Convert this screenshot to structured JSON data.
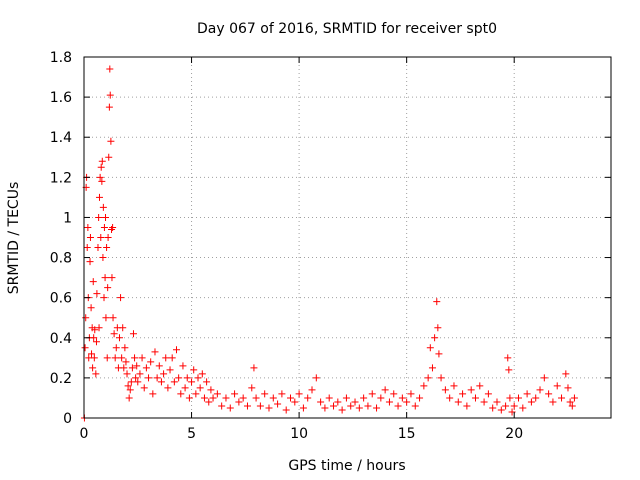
{
  "chart_data": {
    "type": "scatter",
    "title": "Day 067 of 2016, SRMTID for receiver spt0",
    "xlabel": "GPS time / hours",
    "ylabel": "SRMTID / TECUs",
    "xlim": [
      0,
      24.5
    ],
    "ylim": [
      0,
      1.8
    ],
    "x_ticks": [
      0,
      5,
      10,
      15,
      20
    ],
    "x_tick_labels": [
      "0",
      "5",
      "10",
      "15",
      "20"
    ],
    "y_ticks": [
      0,
      0.2,
      0.4,
      0.6,
      0.8,
      1.0,
      1.2,
      1.4,
      1.6,
      1.8
    ],
    "y_tick_labels": [
      "0",
      "0.2",
      "0.4",
      "0.6",
      "0.8",
      "1",
      "1.2",
      "1.4",
      "1.6",
      "1.8"
    ],
    "grid": true,
    "marker": "plus",
    "series": [
      {
        "name": "SRMTID",
        "color": "#ff0000",
        "points": [
          [
            0.02,
            0.0
          ],
          [
            0.05,
            0.35
          ],
          [
            0.08,
            0.5
          ],
          [
            0.1,
            1.15
          ],
          [
            0.12,
            1.2
          ],
          [
            0.15,
            0.85
          ],
          [
            0.18,
            0.95
          ],
          [
            0.2,
            0.6
          ],
          [
            0.22,
            0.3
          ],
          [
            0.25,
            0.4
          ],
          [
            0.28,
            0.78
          ],
          [
            0.3,
            0.9
          ],
          [
            0.33,
            0.55
          ],
          [
            0.35,
            0.32
          ],
          [
            0.38,
            0.45
          ],
          [
            0.4,
            0.25
          ],
          [
            0.43,
            0.68
          ],
          [
            0.45,
            0.4
          ],
          [
            0.48,
            0.3
          ],
          [
            0.5,
            0.44
          ],
          [
            0.55,
            0.22
          ],
          [
            0.58,
            0.38
          ],
          [
            0.6,
            0.62
          ],
          [
            0.65,
            0.85
          ],
          [
            0.68,
            1.0
          ],
          [
            0.7,
            0.45
          ],
          [
            0.72,
            1.1
          ],
          [
            0.75,
            1.2
          ],
          [
            0.78,
            0.9
          ],
          [
            0.8,
            1.25
          ],
          [
            0.83,
            1.18
          ],
          [
            0.85,
            1.28
          ],
          [
            0.88,
            0.8
          ],
          [
            0.9,
            1.05
          ],
          [
            0.93,
            0.6
          ],
          [
            0.95,
            0.95
          ],
          [
            0.98,
            0.7
          ],
          [
            1.0,
            1.0
          ],
          [
            1.02,
            0.5
          ],
          [
            1.05,
            0.85
          ],
          [
            1.08,
            0.3
          ],
          [
            1.1,
            0.65
          ],
          [
            1.12,
            0.9
          ],
          [
            1.15,
            1.3
          ],
          [
            1.18,
            1.55
          ],
          [
            1.2,
            1.74
          ],
          [
            1.22,
            1.61
          ],
          [
            1.25,
            1.38
          ],
          [
            1.28,
            0.94
          ],
          [
            1.3,
            0.7
          ],
          [
            1.33,
            0.95
          ],
          [
            1.35,
            0.5
          ],
          [
            1.4,
            0.42
          ],
          [
            1.45,
            0.3
          ],
          [
            1.5,
            0.35
          ],
          [
            1.55,
            0.45
          ],
          [
            1.6,
            0.25
          ],
          [
            1.65,
            0.4
          ],
          [
            1.7,
            0.6
          ],
          [
            1.75,
            0.3
          ],
          [
            1.8,
            0.45
          ],
          [
            1.85,
            0.25
          ],
          [
            1.9,
            0.35
          ],
          [
            1.95,
            0.28
          ],
          [
            2.0,
            0.22
          ],
          [
            2.05,
            0.16
          ],
          [
            2.1,
            0.1
          ],
          [
            2.15,
            0.14
          ],
          [
            2.2,
            0.18
          ],
          [
            2.25,
            0.25
          ],
          [
            2.3,
            0.42
          ],
          [
            2.35,
            0.3
          ],
          [
            2.4,
            0.2
          ],
          [
            2.45,
            0.26
          ],
          [
            2.5,
            0.18
          ],
          [
            2.6,
            0.22
          ],
          [
            2.7,
            0.3
          ],
          [
            2.8,
            0.15
          ],
          [
            2.9,
            0.25
          ],
          [
            3.0,
            0.2
          ],
          [
            3.1,
            0.28
          ],
          [
            3.2,
            0.12
          ],
          [
            3.3,
            0.33
          ],
          [
            3.4,
            0.2
          ],
          [
            3.5,
            0.26
          ],
          [
            3.6,
            0.18
          ],
          [
            3.7,
            0.22
          ],
          [
            3.8,
            0.3
          ],
          [
            3.9,
            0.15
          ],
          [
            4.0,
            0.24
          ],
          [
            4.1,
            0.3
          ],
          [
            4.2,
            0.18
          ],
          [
            4.3,
            0.34
          ],
          [
            4.4,
            0.2
          ],
          [
            4.5,
            0.12
          ],
          [
            4.6,
            0.26
          ],
          [
            4.7,
            0.15
          ],
          [
            4.8,
            0.2
          ],
          [
            4.9,
            0.1
          ],
          [
            5.0,
            0.18
          ],
          [
            5.1,
            0.24
          ],
          [
            5.2,
            0.12
          ],
          [
            5.3,
            0.2
          ],
          [
            5.4,
            0.15
          ],
          [
            5.5,
            0.22
          ],
          [
            5.6,
            0.1
          ],
          [
            5.7,
            0.18
          ],
          [
            5.8,
            0.08
          ],
          [
            5.9,
            0.14
          ],
          [
            6.0,
            0.1
          ],
          [
            6.2,
            0.12
          ],
          [
            6.4,
            0.06
          ],
          [
            6.6,
            0.1
          ],
          [
            6.8,
            0.05
          ],
          [
            7.0,
            0.12
          ],
          [
            7.2,
            0.08
          ],
          [
            7.4,
            0.1
          ],
          [
            7.6,
            0.06
          ],
          [
            7.8,
            0.15
          ],
          [
            7.9,
            0.25
          ],
          [
            8.0,
            0.1
          ],
          [
            8.2,
            0.06
          ],
          [
            8.4,
            0.12
          ],
          [
            8.6,
            0.05
          ],
          [
            8.8,
            0.1
          ],
          [
            9.0,
            0.07
          ],
          [
            9.2,
            0.12
          ],
          [
            9.4,
            0.04
          ],
          [
            9.6,
            0.1
          ],
          [
            9.8,
            0.08
          ],
          [
            10.0,
            0.12
          ],
          [
            10.2,
            0.05
          ],
          [
            10.4,
            0.1
          ],
          [
            10.6,
            0.14
          ],
          [
            10.8,
            0.2
          ],
          [
            11.0,
            0.08
          ],
          [
            11.2,
            0.05
          ],
          [
            11.4,
            0.1
          ],
          [
            11.6,
            0.06
          ],
          [
            11.8,
            0.08
          ],
          [
            12.0,
            0.04
          ],
          [
            12.2,
            0.1
          ],
          [
            12.4,
            0.06
          ],
          [
            12.6,
            0.08
          ],
          [
            12.8,
            0.05
          ],
          [
            13.0,
            0.1
          ],
          [
            13.2,
            0.06
          ],
          [
            13.4,
            0.12
          ],
          [
            13.6,
            0.05
          ],
          [
            13.8,
            0.1
          ],
          [
            14.0,
            0.14
          ],
          [
            14.2,
            0.08
          ],
          [
            14.4,
            0.12
          ],
          [
            14.6,
            0.06
          ],
          [
            14.8,
            0.1
          ],
          [
            15.0,
            0.08
          ],
          [
            15.2,
            0.12
          ],
          [
            15.4,
            0.06
          ],
          [
            15.6,
            0.1
          ],
          [
            15.8,
            0.16
          ],
          [
            16.0,
            0.2
          ],
          [
            16.1,
            0.35
          ],
          [
            16.2,
            0.25
          ],
          [
            16.3,
            0.4
          ],
          [
            16.4,
            0.58
          ],
          [
            16.45,
            0.45
          ],
          [
            16.5,
            0.32
          ],
          [
            16.6,
            0.2
          ],
          [
            16.8,
            0.14
          ],
          [
            17.0,
            0.1
          ],
          [
            17.2,
            0.16
          ],
          [
            17.4,
            0.08
          ],
          [
            17.6,
            0.12
          ],
          [
            17.8,
            0.06
          ],
          [
            18.0,
            0.14
          ],
          [
            18.2,
            0.1
          ],
          [
            18.4,
            0.16
          ],
          [
            18.6,
            0.08
          ],
          [
            18.8,
            0.12
          ],
          [
            19.0,
            0.05
          ],
          [
            19.2,
            0.08
          ],
          [
            19.4,
            0.04
          ],
          [
            19.6,
            0.06
          ],
          [
            19.7,
            0.3
          ],
          [
            19.75,
            0.24
          ],
          [
            19.8,
            0.1
          ],
          [
            19.9,
            0.03
          ],
          [
            20.0,
            0.06
          ],
          [
            20.2,
            0.1
          ],
          [
            20.4,
            0.05
          ],
          [
            20.6,
            0.12
          ],
          [
            20.8,
            0.08
          ],
          [
            21.0,
            0.1
          ],
          [
            21.2,
            0.14
          ],
          [
            21.4,
            0.2
          ],
          [
            21.6,
            0.12
          ],
          [
            21.8,
            0.08
          ],
          [
            22.0,
            0.16
          ],
          [
            22.2,
            0.1
          ],
          [
            22.4,
            0.22
          ],
          [
            22.5,
            0.15
          ],
          [
            22.6,
            0.08
          ],
          [
            22.7,
            0.06
          ],
          [
            22.8,
            0.1
          ]
        ]
      }
    ]
  }
}
